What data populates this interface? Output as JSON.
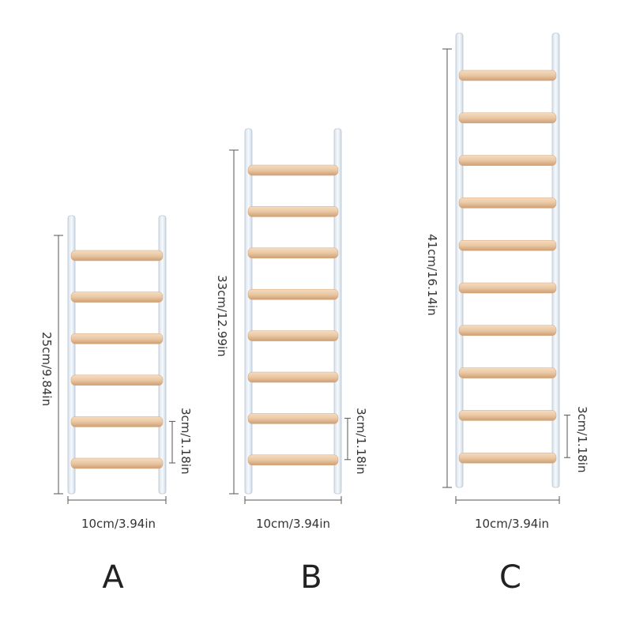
{
  "ladders": [
    {
      "id": "A",
      "letter": "A",
      "height_label": "25cm/9.84in",
      "width_label": "10cm/3.94in",
      "rung_gap_label": "3cm/1.18in",
      "rungs": 6
    },
    {
      "id": "B",
      "letter": "B",
      "height_label": "33cm/12.99in",
      "width_label": "10cm/3.94in",
      "rung_gap_label": "3cm/1.18in",
      "rungs": 8
    },
    {
      "id": "C",
      "letter": "C",
      "height_label": "41cm/16.14in",
      "width_label": "10cm/3.94in",
      "rung_gap_label": "3cm/1.18in",
      "rungs": 10
    }
  ],
  "colors": {
    "rail": "#eef3f8",
    "rail_edge": "#b9c6d4",
    "rung": "#e9c7a3",
    "rung_shadow": "#d3a67c",
    "dimension_line": "#555555"
  }
}
